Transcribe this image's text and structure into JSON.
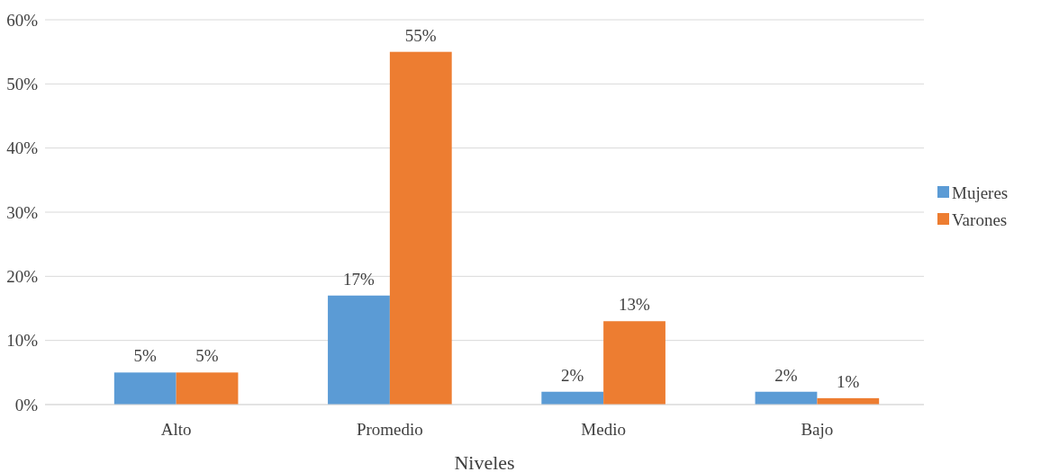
{
  "chart_data": {
    "type": "bar",
    "xlabel": "Niveles",
    "categories": [
      "Alto",
      "Promedio",
      "Medio",
      "Bajo"
    ],
    "series": [
      {
        "name": "Mujeres",
        "color": "#5b9bd5",
        "values": [
          5,
          17,
          2,
          2
        ],
        "value_labels": [
          "5%",
          "17%",
          "2%",
          "2%"
        ]
      },
      {
        "name": "Varones",
        "color": "#ed7d31",
        "values": [
          5,
          55,
          13,
          1
        ],
        "value_labels": [
          "5%",
          "55%",
          "13%",
          "1%"
        ]
      }
    ],
    "ylim": [
      0,
      60
    ],
    "yticks": [
      {
        "value": 0,
        "label": "0%"
      },
      {
        "value": 10,
        "label": "10%"
      },
      {
        "value": 20,
        "label": "20%"
      },
      {
        "value": 30,
        "label": "30%"
      },
      {
        "value": 40,
        "label": "40%"
      },
      {
        "value": 50,
        "label": "50%"
      },
      {
        "value": 60,
        "label": "60%"
      }
    ],
    "grid": "y",
    "legend": "right"
  }
}
